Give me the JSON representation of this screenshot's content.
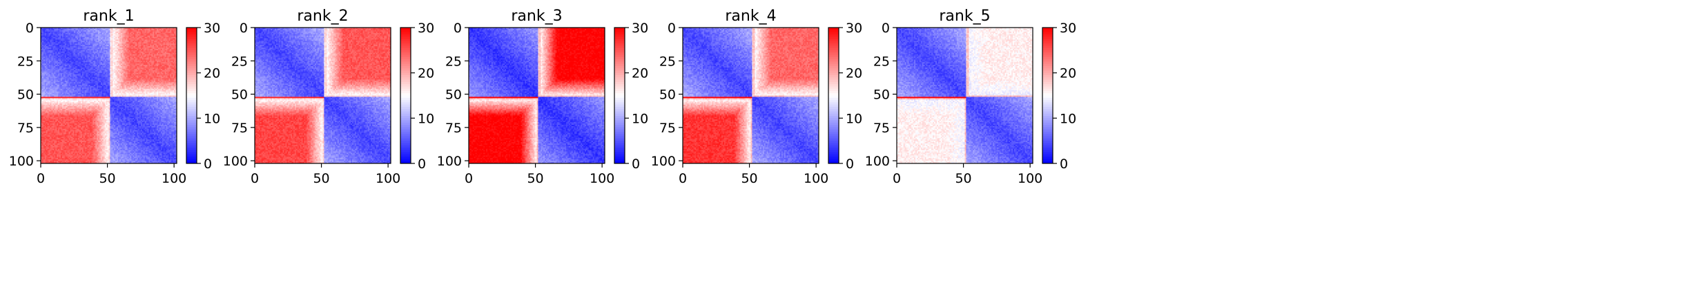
{
  "chart_data": [
    {
      "type": "heatmap",
      "title": "rank_1",
      "x_ticks": [
        0,
        50,
        100
      ],
      "y_ticks": [
        0,
        25,
        50,
        75,
        100
      ],
      "x_range": [
        0,
        102
      ],
      "y_range": [
        0,
        102
      ],
      "colorbar": {
        "ticks": [
          0,
          10,
          20,
          30
        ],
        "range": [
          0,
          30
        ],
        "colormap": "bwr"
      },
      "blocks": {
        "split": 52,
        "diag": 4,
        "offdiag_upper": 24,
        "offdiag_lower": 25,
        "edge_start": 70,
        "band_high": 28,
        "inner_gap": 40
      }
    },
    {
      "type": "heatmap",
      "title": "rank_2",
      "x_ticks": [
        0,
        50,
        100
      ],
      "y_ticks": [
        0,
        25,
        50,
        75,
        100
      ],
      "x_range": [
        0,
        102
      ],
      "y_range": [
        0,
        102
      ],
      "colorbar": {
        "ticks": [
          0,
          10,
          20,
          30
        ],
        "range": [
          0,
          30
        ],
        "colormap": "bwr"
      },
      "blocks": {
        "split": 52,
        "diag": 4,
        "offdiag_upper": 25,
        "offdiag_lower": 26,
        "edge_start": 72,
        "band_high": 28,
        "inner_gap": 40
      }
    },
    {
      "type": "heatmap",
      "title": "rank_3",
      "x_ticks": [
        0,
        50,
        100
      ],
      "y_ticks": [
        0,
        25,
        50,
        75,
        100
      ],
      "x_range": [
        0,
        102
      ],
      "y_range": [
        0,
        102
      ],
      "colorbar": {
        "ticks": [
          0,
          10,
          20,
          30
        ],
        "range": [
          0,
          30
        ],
        "colormap": "bwr"
      },
      "blocks": {
        "split": 52,
        "diag": 3,
        "offdiag_upper": 30,
        "offdiag_lower": 30,
        "edge_start": 56,
        "band_high": 30,
        "inner_gap": 50
      }
    },
    {
      "type": "heatmap",
      "title": "rank_4",
      "x_ticks": [
        0,
        50,
        100
      ],
      "y_ticks": [
        0,
        25,
        50,
        75,
        100
      ],
      "x_range": [
        0,
        102
      ],
      "y_range": [
        0,
        102
      ],
      "colorbar": {
        "ticks": [
          0,
          10,
          20,
          30
        ],
        "range": [
          0,
          30
        ],
        "colormap": "bwr"
      },
      "blocks": {
        "split": 52,
        "diag": 4,
        "offdiag_upper": 24,
        "offdiag_lower": 27,
        "edge_start": 60,
        "band_high": 30,
        "inner_gap": 45
      }
    },
    {
      "type": "heatmap",
      "title": "rank_5",
      "x_ticks": [
        0,
        50,
        100
      ],
      "y_ticks": [
        0,
        25,
        50,
        75,
        100
      ],
      "x_range": [
        0,
        102
      ],
      "y_range": [
        0,
        102
      ],
      "colorbar": {
        "ticks": [
          0,
          10,
          20,
          30
        ],
        "range": [
          0,
          30
        ],
        "colormap": "bwr"
      },
      "blocks": {
        "split": 52,
        "diag": 4,
        "offdiag_upper": 16,
        "offdiag_lower": 16,
        "edge_start": 56,
        "band_high": 30,
        "inner_gap": 40
      }
    }
  ]
}
